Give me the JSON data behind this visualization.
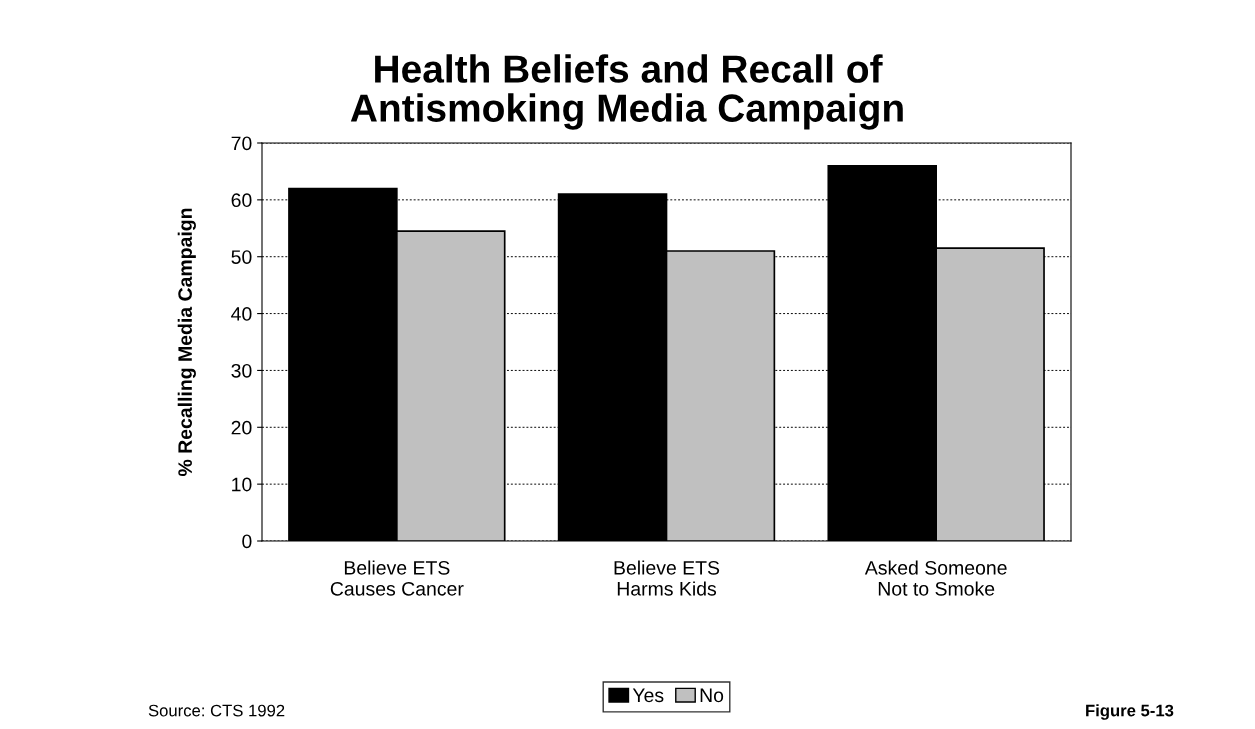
{
  "chart_data": {
    "type": "bar",
    "title": "Health Beliefs and Recall of\nAntismoking Media Campaign",
    "ylabel": "% Recalling Media Campaign",
    "categories": [
      "Believe ETS\nCauses Cancer",
      "Believe ETS\nHarms Kids",
      "Asked Someone\nNot to Smoke"
    ],
    "series": [
      {
        "name": "Yes",
        "color": "#000000",
        "values": [
          62,
          61,
          66
        ]
      },
      {
        "name": "No",
        "color": "#c0c0c0",
        "values": [
          54.5,
          51,
          51.5
        ]
      }
    ],
    "ylim": [
      0,
      70
    ],
    "yticks": [
      0,
      10,
      20,
      30,
      40,
      50,
      60,
      70
    ],
    "grid": "y",
    "legend": "bottom",
    "annotations": [
      "Source: CTS 1992",
      "Figure 5-13"
    ]
  }
}
